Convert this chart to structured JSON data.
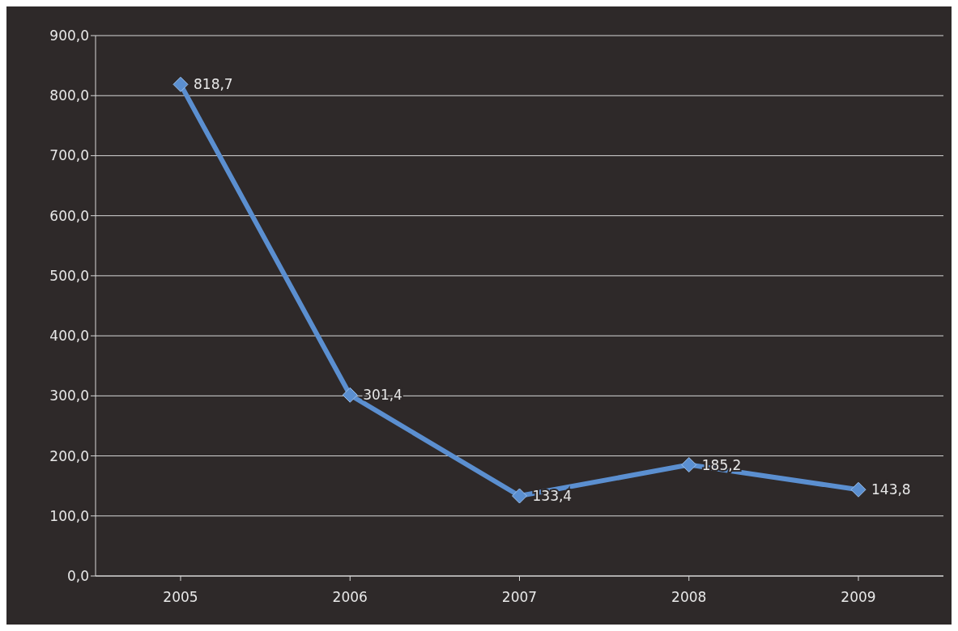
{
  "chart_data": {
    "type": "line",
    "categories": [
      "2005",
      "2006",
      "2007",
      "2008",
      "2009"
    ],
    "series": [
      {
        "color": "#5b8fd0",
        "values": [
          818.7,
          301.4,
          133.4,
          185.2,
          143.8
        ],
        "value_labels": [
          "818,7",
          "301,4",
          "133,4",
          "185,2",
          "143,8"
        ]
      }
    ],
    "ylim": [
      0,
      900
    ],
    "yticks": [
      {
        "value": 0,
        "label": "0,0"
      },
      {
        "value": 100,
        "label": "100,0"
      },
      {
        "value": 200,
        "label": "200,0"
      },
      {
        "value": 300,
        "label": "300,0"
      },
      {
        "value": 400,
        "label": "400,0"
      },
      {
        "value": 500,
        "label": "500,0"
      },
      {
        "value": 600,
        "label": "600,0"
      },
      {
        "value": 700,
        "label": "700,0"
      },
      {
        "value": 800,
        "label": "800,0"
      },
      {
        "value": 900,
        "label": "900,0"
      }
    ],
    "grid": "y",
    "marker": "diamond",
    "line_style": "solid"
  }
}
